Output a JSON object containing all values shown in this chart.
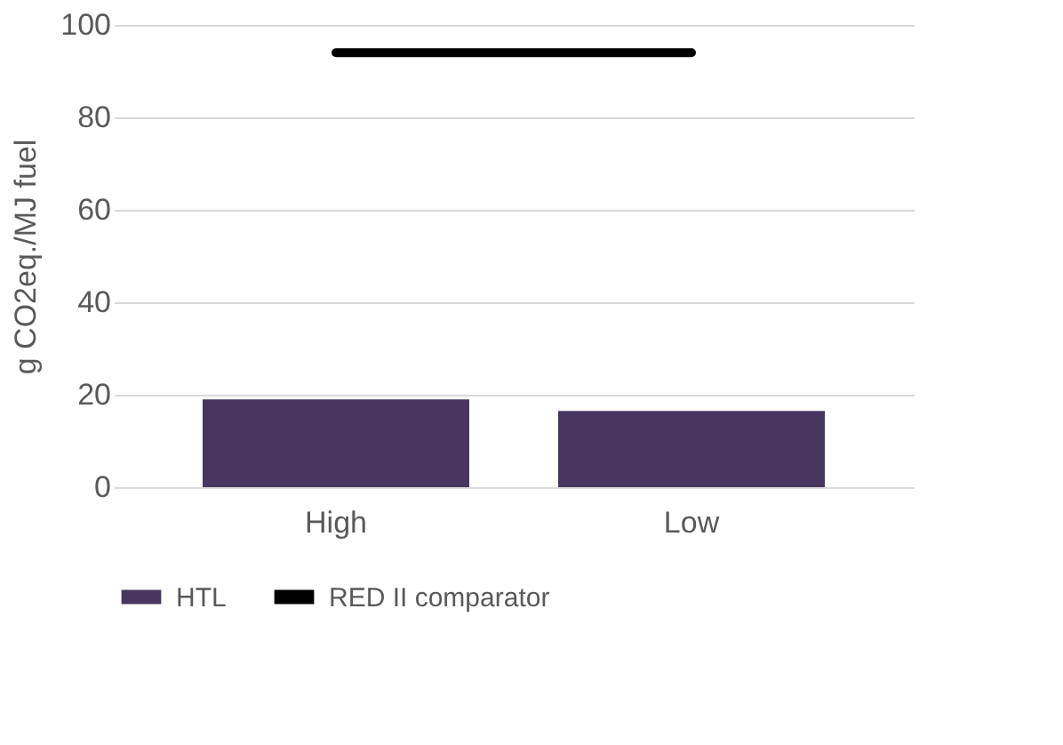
{
  "chart_data": {
    "type": "bar",
    "ylabel": "g CO2eq./MJ fuel",
    "categories": [
      "High",
      "Low"
    ],
    "series": [
      {
        "name": "HTL",
        "color": "#47365f",
        "values": [
          19,
          16.5
        ]
      },
      {
        "name": "RED II comparator",
        "type": "line",
        "color": "#000000",
        "values": [
          94,
          94
        ]
      }
    ],
    "ylim": [
      0,
      100
    ],
    "yticks": [
      0,
      20,
      40,
      60,
      80,
      100
    ],
    "grid": "y",
    "legend": "bottom"
  }
}
